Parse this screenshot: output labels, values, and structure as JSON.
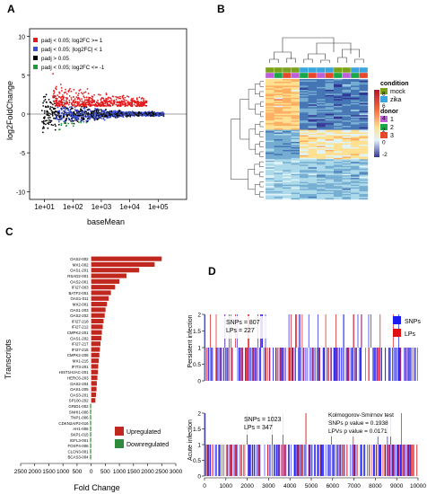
{
  "panel_letters": {
    "a": "A",
    "b": "B",
    "c": "C",
    "d": "D"
  },
  "colors": {
    "ma_red": "#e41a1c",
    "ma_blue": "#3a4fd8",
    "ma_black": "#000000",
    "ma_green": "#1a9a3a",
    "mock": "#7aa21a",
    "zika": "#3aa6df",
    "donor1": "#c060d8",
    "donor2": "#1aa64a",
    "donor3": "#e8482a",
    "up_bar": "#c0271f",
    "down_bar": "#2e8b3c",
    "snp": "#1c1cf0",
    "lp": "#e01010"
  },
  "chart_data": [
    {
      "panel": "A",
      "type": "scatter",
      "title": "",
      "xlabel": "baseMean",
      "ylabel": "log2FoldChange",
      "x_scale": "log10",
      "xlim": [
        3,
        1000000
      ],
      "ylim": [
        -11,
        11
      ],
      "x_ticks": [
        "1e+01",
        "1e+02",
        "1e+03",
        "1e+04",
        "1e+05"
      ],
      "y_ticks": [
        "-10",
        "-5",
        "0",
        "5",
        "10"
      ],
      "legend_position": "top-left",
      "series": [
        {
          "name": "padj < 0.05; log2FC >= 1",
          "color": "#e41a1c"
        },
        {
          "name": "padj < 0.05; |log2FC| < 1",
          "color": "#3a4fd8"
        },
        {
          "name": "padj > 0.05",
          "color": "#000000"
        },
        {
          "name": "padj < 0.05; log2FC <= -1",
          "color": "#1a9a3a"
        }
      ]
    },
    {
      "panel": "B",
      "type": "heatmap",
      "legend_title_condition": "condition",
      "conditions": [
        "mock",
        "zika"
      ],
      "legend_title_donor": "donor",
      "donors": [
        "1",
        "2",
        "3"
      ],
      "scale_ticks": [
        "8",
        "6",
        "4",
        "2",
        "0",
        "-2"
      ]
    },
    {
      "panel": "C",
      "type": "bar",
      "xlabel": "Fold Change",
      "ylabel": "Transcripts",
      "x_ticks": [
        "2500",
        "2000",
        "1500",
        "1000",
        "500",
        "0",
        "500",
        "1000",
        "1500",
        "2000",
        "2500",
        "3000"
      ],
      "legend": [
        "Upregulated",
        "Downregulated"
      ],
      "categories": [
        "OAS2-002",
        "MX1-002",
        "OAS1-201",
        "RSAD2-001",
        "OAS2-001",
        "IFI27-003",
        "BATF2-001",
        "OAS1-011",
        "MX2-001",
        "OAS1-203",
        "OAS2-202",
        "IFI27-218",
        "IFI27-212",
        "CMPK2-201",
        "OAS1-202",
        "IFI27-217",
        "IFI27-215",
        "CMPK2-206",
        "MX1-215",
        "IFIT3-201",
        "HIST1H2AC-201",
        "HERC6-203",
        "OAS2-204",
        "OAS1-205",
        "OAS3-201",
        "SP100-202",
        "GRID1-002",
        "SNHI1-006",
        "TNP1-006",
        "CDKN2AIP2-016",
        "AH1-006",
        "SKP1-015",
        "IGFL3-001",
        "FOXP4-006",
        "CLCN3-001",
        "BCAS3-004"
      ],
      "values": [
        2500,
        2250,
        1700,
        1250,
        1000,
        850,
        700,
        620,
        560,
        510,
        480,
        440,
        410,
        380,
        360,
        330,
        310,
        290,
        270,
        250,
        240,
        220,
        200,
        190,
        170,
        150,
        -12,
        -11,
        -10,
        -10,
        -9,
        -9,
        -8,
        -8,
        -7,
        -7
      ]
    },
    {
      "panel": "D-top",
      "type": "bar",
      "ylabel": "Persistent infection",
      "annotation": [
        "SNPs = 807",
        "LPs = 227"
      ],
      "legend": [
        "SNPs",
        "LPs"
      ],
      "y_ticks": [
        "0",
        "0.5",
        "1",
        "1.5",
        "2"
      ],
      "xlim": [
        0,
        10000
      ]
    },
    {
      "panel": "D-bottom",
      "type": "bar",
      "ylabel": "Acute infection",
      "annotation": [
        "SNPs = 1023",
        "LPs = 347"
      ],
      "test_lines": [
        "Kolmogorov-Smirnov test",
        "SNPs p value = 0.1938",
        "LPVs p value = 0.0171"
      ],
      "y_ticks": [
        "0",
        "0.5",
        "1",
        "1.5",
        "2"
      ],
      "x_ticks": [
        "0",
        "1000",
        "2000",
        "3000",
        "4000",
        "5000",
        "6000",
        "7000",
        "8000",
        "9000",
        "10000"
      ],
      "xlim": [
        0,
        10000
      ]
    }
  ]
}
